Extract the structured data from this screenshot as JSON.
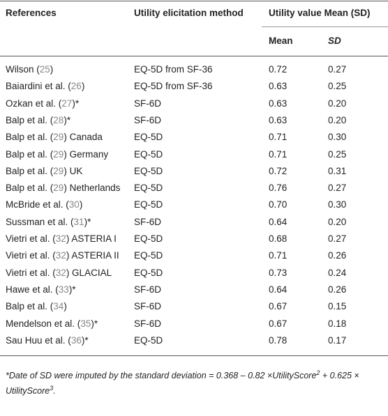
{
  "header": {
    "references": "References",
    "method": "Utility elicitation method",
    "utility_value": "Utility value Mean (SD)",
    "mean": "Mean",
    "sd": "SD"
  },
  "rows": [
    {
      "reference": [
        "Wilson (",
        "25",
        ")"
      ],
      "method": "EQ-5D from SF-36",
      "mean": "0.72",
      "sd": "0.27"
    },
    {
      "reference": [
        "Baiardini et al. (",
        "26",
        ")"
      ],
      "method": "EQ-5D from SF-36",
      "mean": "0.63",
      "sd": "0.25"
    },
    {
      "reference": [
        "Ozkan et al. (",
        "27",
        ")*"
      ],
      "method": "SF-6D",
      "mean": "0.63",
      "sd": "0.20"
    },
    {
      "reference": [
        "Balp et al. (",
        "28",
        ")*"
      ],
      "method": "SF-6D",
      "mean": "0.63",
      "sd": "0.20"
    },
    {
      "reference": [
        "Balp et al. (",
        "29",
        ") Canada"
      ],
      "method": "EQ-5D",
      "mean": "0.71",
      "sd": "0.30"
    },
    {
      "reference": [
        "Balp et al. (",
        "29",
        ") Germany"
      ],
      "method": "EQ-5D",
      "mean": "0.71",
      "sd": "0.25"
    },
    {
      "reference": [
        "Balp et al. (",
        "29",
        ") UK"
      ],
      "method": "EQ-5D",
      "mean": "0.72",
      "sd": "0.31"
    },
    {
      "reference": [
        "Balp et al. (",
        "29",
        ") Netherlands"
      ],
      "method": "EQ-5D",
      "mean": "0.76",
      "sd": "0.27"
    },
    {
      "reference": [
        "McBride et al. (",
        "30",
        ")"
      ],
      "method": "EQ-5D",
      "mean": "0.70",
      "sd": "0.30"
    },
    {
      "reference": [
        "Sussman et al. (",
        "31",
        ")*"
      ],
      "method": "SF-6D",
      "mean": "0.64",
      "sd": "0.20"
    },
    {
      "reference": [
        "Vietri et al. (",
        "32",
        ") ASTERIA I"
      ],
      "method": "EQ-5D",
      "mean": "0.68",
      "sd": "0.27"
    },
    {
      "reference": [
        "Vietri et al. (",
        "32",
        ") ASTERIA II"
      ],
      "method": "EQ-5D",
      "mean": "0.71",
      "sd": "0.26"
    },
    {
      "reference": [
        "Vietri et al. (",
        "32",
        ") GLACIAL"
      ],
      "method": "EQ-5D",
      "mean": "0.73",
      "sd": "0.24"
    },
    {
      "reference": [
        "Hawe et al. (",
        "33",
        ")*"
      ],
      "method": "SF-6D",
      "mean": "0.64",
      "sd": "0.26"
    },
    {
      "reference": [
        "Balp et al. (",
        "34",
        ")"
      ],
      "method": "SF-6D",
      "mean": "0.67",
      "sd": "0.15"
    },
    {
      "reference": [
        "Mendelson et al. (",
        "35",
        ")*"
      ],
      "method": "SF-6D",
      "mean": "0.67",
      "sd": "0.18"
    },
    {
      "reference": [
        "Sau Huu et al. (",
        "36",
        ")*"
      ],
      "method": "EQ-5D",
      "mean": "0.78",
      "sd": "0.17"
    }
  ],
  "footnote": [
    "*Date of ",
    "SD",
    " were imputed by the standard deviation = 0.368 – 0.82 ×",
    "UtilityScore",
    "2",
    " + 0.625 × ",
    "UtilityScore",
    "3",
    "."
  ]
}
